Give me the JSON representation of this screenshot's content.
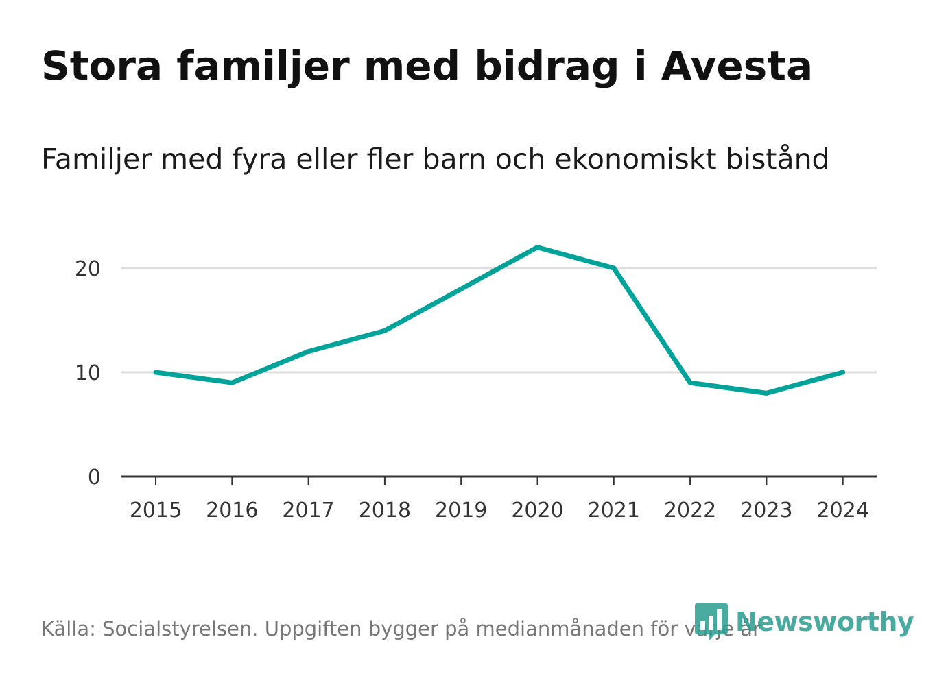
{
  "title": "Stora familjer med bidrag i Avesta",
  "subtitle": "Familjer med fyra eller fler barn och ekonomiskt bistånd",
  "source": "Källa: Socialstyrelsen. Uppgiften bygger på medianmånaden för varje år",
  "logo": {
    "text": "Newsworthy",
    "icon": "bar-chart-icon"
  },
  "colors": {
    "line": "#00a39a",
    "grid": "#dddddd",
    "axis": "#333333",
    "logo": "#2a9d8f"
  },
  "chart_data": {
    "type": "line",
    "title": "Stora familjer med bidrag i Avesta",
    "subtitle": "Familjer med fyra eller fler barn och ekonomiskt bistånd",
    "xlabel": "",
    "ylabel": "",
    "categories": [
      "2015",
      "2016",
      "2017",
      "2018",
      "2019",
      "2020",
      "2021",
      "2022",
      "2023",
      "2024"
    ],
    "series": [
      {
        "name": "Familjer med fyra eller fler barn och ekonomiskt bistånd",
        "values": [
          10,
          9,
          12,
          14,
          18,
          22,
          20,
          9,
          8,
          10
        ]
      }
    ],
    "yticks": [
      0,
      10,
      20
    ],
    "ylim": [
      0,
      23
    ],
    "grid": true
  }
}
